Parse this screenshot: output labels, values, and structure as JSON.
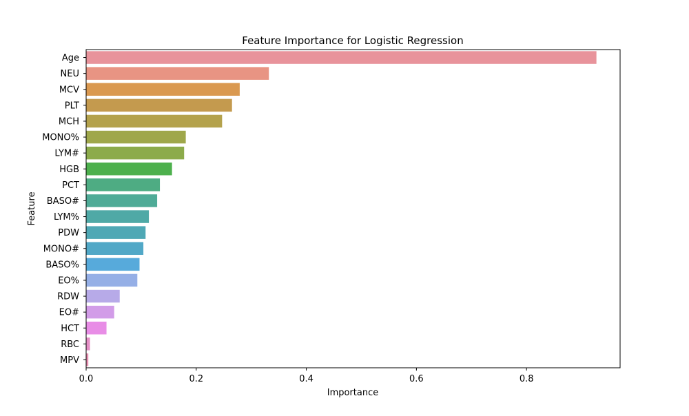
{
  "chart_data": {
    "type": "bar",
    "orientation": "horizontal",
    "title": "Feature Importance for Logistic Regression",
    "xlabel": "Importance",
    "ylabel": "Feature",
    "xlim": [
      0,
      0.97
    ],
    "xticks": [
      0.0,
      0.2,
      0.4,
      0.6,
      0.8
    ],
    "xtick_labels": [
      "0.0",
      "0.2",
      "0.4",
      "0.6",
      "0.8"
    ],
    "grid": false,
    "legend": "none",
    "categories": [
      "Age",
      "NEU",
      "MCV",
      "PLT",
      "MCH",
      "MONO%",
      "LYM#",
      "HGB",
      "PCT",
      "BASO#",
      "LYM%",
      "PDW",
      "MONO#",
      "BASO%",
      "EO%",
      "RDW",
      "EO#",
      "HCT",
      "RBC",
      "MPV"
    ],
    "values": [
      0.927,
      0.332,
      0.279,
      0.265,
      0.247,
      0.181,
      0.178,
      0.156,
      0.134,
      0.129,
      0.114,
      0.108,
      0.104,
      0.097,
      0.093,
      0.061,
      0.051,
      0.037,
      0.007,
      0.004
    ],
    "colors": [
      "#e8939b",
      "#e89483",
      "#da9950",
      "#c49a4e",
      "#b4a24c",
      "#9fa74b",
      "#8cab4b",
      "#4db04d",
      "#4eac83",
      "#4fab97",
      "#4fa9a6",
      "#4fa8b5",
      "#51a8c7",
      "#57aadb",
      "#95afe6",
      "#b7aae8",
      "#d29ce8",
      "#e88de6",
      "#e58fc6",
      "#e78fb0"
    ]
  }
}
